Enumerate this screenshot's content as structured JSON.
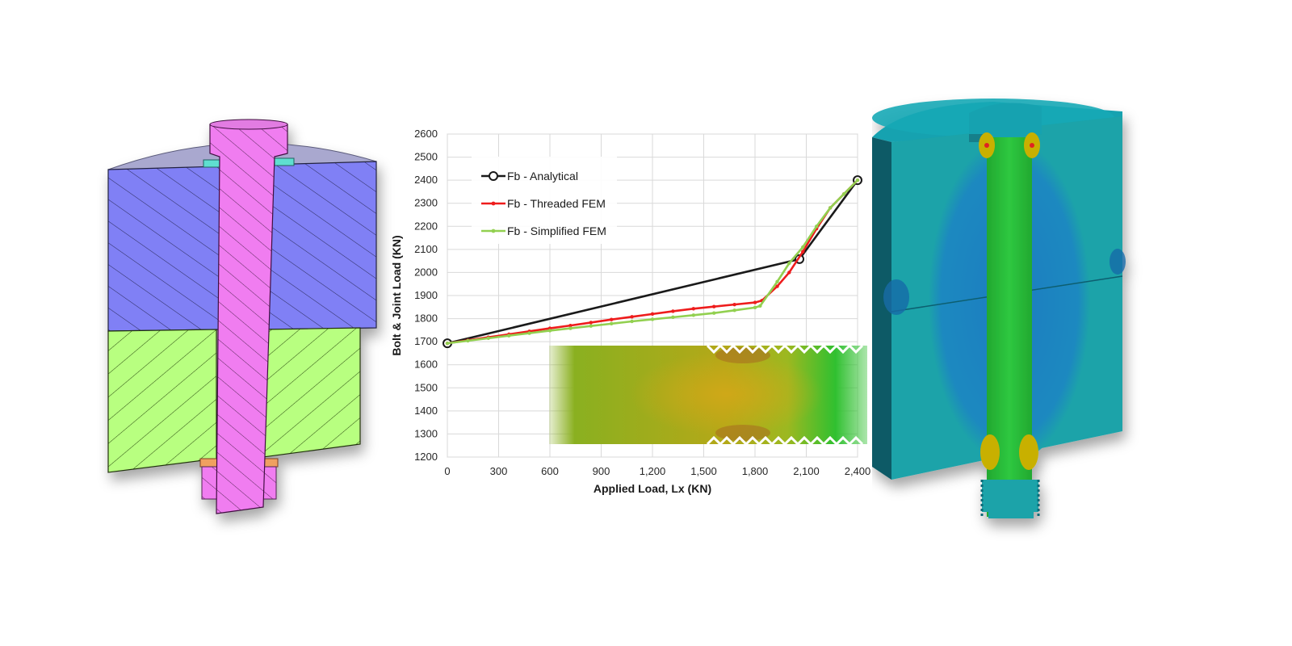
{
  "chart_data": {
    "type": "line",
    "xlabel": "Applied Load, Lx (KN)",
    "ylabel": "Bolt & Joint Load (KN)",
    "xlim": [
      0,
      2400
    ],
    "ylim": [
      1200,
      2600
    ],
    "xticks": [
      0,
      300,
      600,
      900,
      1200,
      1500,
      1800,
      2100,
      2400
    ],
    "xtick_labels": [
      "0",
      "300",
      "600",
      "900",
      "1,200",
      "1,500",
      "1,800",
      "2,100",
      "2,400"
    ],
    "yticks": [
      1200,
      1300,
      1400,
      1500,
      1600,
      1700,
      1800,
      1900,
      2000,
      2100,
      2200,
      2300,
      2400,
      2500,
      2600
    ],
    "ytick_labels": [
      "1200",
      "1300",
      "1400",
      "1500",
      "1600",
      "1700",
      "1800",
      "1900",
      "2000",
      "2100",
      "2200",
      "2300",
      "2400",
      "2500",
      "2600"
    ],
    "grid": true,
    "legend_position": "top-left",
    "series": [
      {
        "name": "Fb - Analytical",
        "color": "#1a1a1a",
        "marker": "open-circle",
        "x": [
          0,
          2060,
          2400
        ],
        "y": [
          1693,
          2058,
          2400
        ]
      },
      {
        "name": "Fb - Threaded FEM",
        "color": "#ee1c1c",
        "marker": "dot",
        "x": [
          0,
          120,
          240,
          360,
          480,
          600,
          720,
          840,
          960,
          1080,
          1200,
          1320,
          1440,
          1560,
          1680,
          1800,
          1840,
          1930,
          2000,
          2080,
          2160,
          2240,
          2320,
          2400
        ],
        "y": [
          1693,
          1706,
          1719,
          1732,
          1745,
          1758,
          1770,
          1783,
          1796,
          1808,
          1820,
          1832,
          1843,
          1852,
          1861,
          1870,
          1878,
          1940,
          2000,
          2090,
          2190,
          2280,
          2340,
          2400
        ]
      },
      {
        "name": "Fb - Simplified FEM",
        "color": "#92d050",
        "marker": "dot",
        "x": [
          0,
          120,
          240,
          360,
          480,
          600,
          720,
          840,
          960,
          1080,
          1200,
          1320,
          1440,
          1560,
          1680,
          1800,
          1830,
          1930,
          2000,
          2080,
          2160,
          2240,
          2320,
          2400
        ],
        "y": [
          1693,
          1704,
          1715,
          1726,
          1737,
          1748,
          1758,
          1768,
          1778,
          1788,
          1797,
          1806,
          1815,
          1824,
          1836,
          1848,
          1855,
          1960,
          2040,
          2110,
          2200,
          2280,
          2340,
          2400
        ]
      }
    ]
  },
  "left_figure": {
    "bolt_color": "#f07df0",
    "upper_plate_color": "#8080f5",
    "lower_plate_color": "#b8ff80",
    "top_surface_color": "#a9a8cf",
    "washer_color": "#5fdfd0",
    "nut_color": "#f0a060"
  },
  "right_figure": {
    "outer_color": "#1aa3a9",
    "inner_color": "#1e84c0",
    "bolt_color": "#20c030",
    "hotspot_color": "#c8b000"
  },
  "inset_figure": {
    "base_color": "#8ab020",
    "mid_color": "#c8a818",
    "edge_color": "#30c030"
  }
}
